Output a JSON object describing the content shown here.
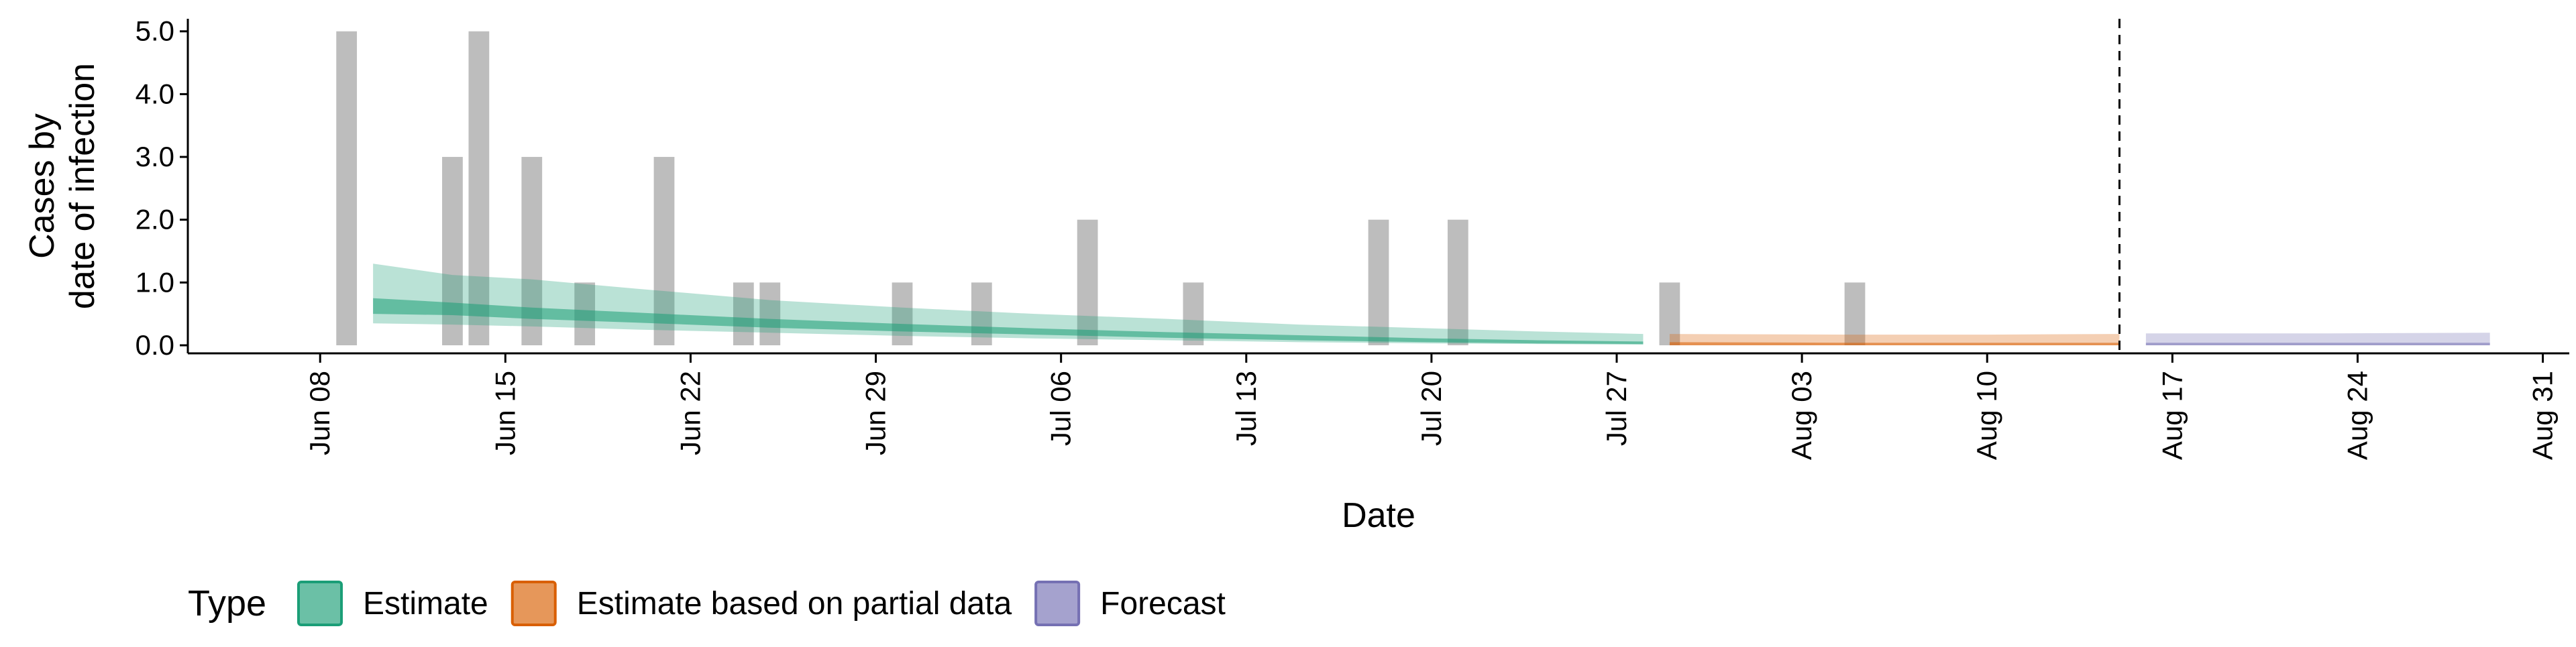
{
  "chart_data": {
    "type": "bar",
    "xlabel": "Date",
    "ylabel": [
      "Cases by",
      "date of infection"
    ],
    "ylim": [
      0,
      5.2
    ],
    "y_ticks": [
      0,
      1,
      2,
      3,
      4,
      5
    ],
    "y_tick_labels": [
      "0.0",
      "1.0",
      "2.0",
      "3.0",
      "4.0",
      "5.0"
    ],
    "xlim": [
      "2020-06-03",
      "2020-09-01"
    ],
    "x_ticks": [
      "2020-06-08",
      "2020-06-15",
      "2020-06-22",
      "2020-06-29",
      "2020-07-06",
      "2020-07-13",
      "2020-07-20",
      "2020-07-27",
      "2020-08-03",
      "2020-08-10",
      "2020-08-17",
      "2020-08-24",
      "2020-08-31"
    ],
    "x_tick_labels": [
      "Jun 08",
      "Jun 15",
      "Jun 22",
      "Jun 29",
      "Jul 06",
      "Jul 13",
      "Jul 20",
      "Jul 27",
      "Aug 03",
      "Aug 10",
      "Aug 17",
      "Aug 24",
      "Aug 31"
    ],
    "grid": false,
    "bars": {
      "color": "#bdbdbd",
      "points": [
        {
          "date": "2020-06-09",
          "value": 5
        },
        {
          "date": "2020-06-13",
          "value": 3
        },
        {
          "date": "2020-06-14",
          "value": 5
        },
        {
          "date": "2020-06-16",
          "value": 3
        },
        {
          "date": "2020-06-18",
          "value": 1
        },
        {
          "date": "2020-06-21",
          "value": 3
        },
        {
          "date": "2020-06-24",
          "value": 1
        },
        {
          "date": "2020-06-25",
          "value": 1
        },
        {
          "date": "2020-06-30",
          "value": 1
        },
        {
          "date": "2020-07-03",
          "value": 1
        },
        {
          "date": "2020-07-07",
          "value": 2
        },
        {
          "date": "2020-07-11",
          "value": 1
        },
        {
          "date": "2020-07-18",
          "value": 2
        },
        {
          "date": "2020-07-21",
          "value": 2
        },
        {
          "date": "2020-07-29",
          "value": 1
        },
        {
          "date": "2020-08-05",
          "value": 1
        }
      ]
    },
    "vline": {
      "date": "2020-08-15",
      "style": "dashed"
    },
    "series": [
      {
        "name": "Estimate",
        "color": "#1b9e77",
        "points": [
          {
            "date": "2020-06-10",
            "outer": [
              0.35,
              1.3
            ],
            "inner": [
              0.5,
              0.75
            ]
          },
          {
            "date": "2020-06-13",
            "outer": [
              0.33,
              1.12
            ],
            "inner": [
              0.48,
              0.68
            ]
          },
          {
            "date": "2020-06-16",
            "outer": [
              0.3,
              1.05
            ],
            "inner": [
              0.42,
              0.6
            ]
          },
          {
            "date": "2020-06-20",
            "outer": [
              0.25,
              0.9
            ],
            "inner": [
              0.36,
              0.52
            ]
          },
          {
            "date": "2020-06-25",
            "outer": [
              0.2,
              0.72
            ],
            "inner": [
              0.28,
              0.42
            ]
          },
          {
            "date": "2020-06-30",
            "outer": [
              0.15,
              0.6
            ],
            "inner": [
              0.22,
              0.34
            ]
          },
          {
            "date": "2020-07-05",
            "outer": [
              0.11,
              0.5
            ],
            "inner": [
              0.17,
              0.27
            ]
          },
          {
            "date": "2020-07-10",
            "outer": [
              0.08,
              0.42
            ],
            "inner": [
              0.12,
              0.21
            ]
          },
          {
            "date": "2020-07-15",
            "outer": [
              0.05,
              0.33
            ],
            "inner": [
              0.08,
              0.16
            ]
          },
          {
            "date": "2020-07-20",
            "outer": [
              0.03,
              0.27
            ],
            "inner": [
              0.05,
              0.11
            ]
          },
          {
            "date": "2020-07-24",
            "outer": [
              0.02,
              0.22
            ],
            "inner": [
              0.03,
              0.08
            ]
          },
          {
            "date": "2020-07-28",
            "outer": [
              0.01,
              0.18
            ],
            "inner": [
              0.02,
              0.06
            ]
          }
        ]
      },
      {
        "name": "Estimate based on partial data",
        "color": "#d95f02",
        "points": [
          {
            "date": "2020-07-29",
            "outer": [
              0.0,
              0.18
            ],
            "inner": [
              0.0,
              0.05
            ]
          },
          {
            "date": "2020-08-05",
            "outer": [
              0.0,
              0.17
            ],
            "inner": [
              0.0,
              0.04
            ]
          },
          {
            "date": "2020-08-10",
            "outer": [
              0.0,
              0.17
            ],
            "inner": [
              0.0,
              0.04
            ]
          },
          {
            "date": "2020-08-15",
            "outer": [
              0.0,
              0.18
            ],
            "inner": [
              0.0,
              0.04
            ]
          }
        ]
      },
      {
        "name": "Forecast",
        "color": "#7570b3",
        "points": [
          {
            "date": "2020-08-16",
            "outer": [
              0.0,
              0.19
            ],
            "inner": [
              0.0,
              0.04
            ]
          },
          {
            "date": "2020-08-23",
            "outer": [
              0.0,
              0.19
            ],
            "inner": [
              0.0,
              0.04
            ]
          },
          {
            "date": "2020-08-29",
            "outer": [
              0.0,
              0.2
            ],
            "inner": [
              0.0,
              0.04
            ]
          }
        ]
      }
    ],
    "legend": {
      "title": "Type",
      "placement": "bottom",
      "entries": [
        "Estimate",
        "Estimate based on partial data",
        "Forecast"
      ],
      "colors": [
        "#1b9e77",
        "#d95f02",
        "#7570b3"
      ]
    }
  }
}
